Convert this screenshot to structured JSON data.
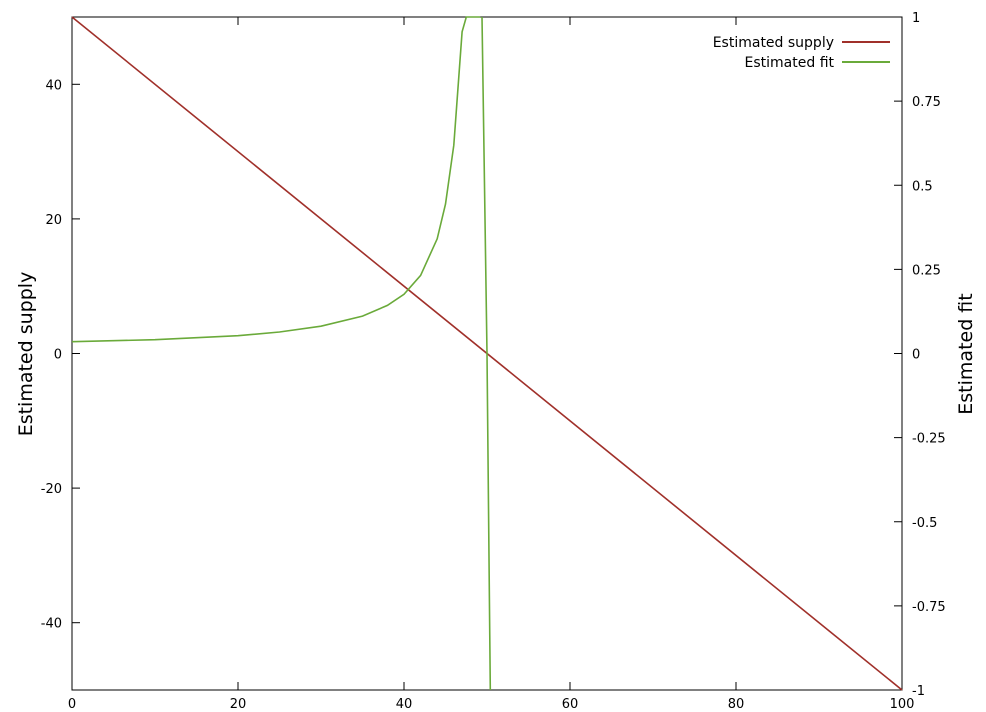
{
  "chart_data": {
    "type": "line",
    "title": "",
    "xlabel": "",
    "ylabel": "Estimated supply",
    "y2label": "Estimated fit",
    "xlim": [
      0,
      100
    ],
    "ylim": [
      -50,
      50
    ],
    "y2lim": [
      -1,
      1
    ],
    "grid": false,
    "legend_position": "top-right",
    "x_ticks": [
      "0",
      "20",
      "40",
      "60",
      "80",
      "100"
    ],
    "y_ticks": [
      "-40",
      "-20",
      "0",
      "20",
      "40"
    ],
    "y2_ticks": [
      "-1",
      "-0.75",
      "-0.5",
      "-0.25",
      "0",
      "0.25",
      "0.5",
      "0.75",
      "1"
    ],
    "series": [
      {
        "name": "Estimated supply",
        "axis": "left",
        "color": "#a0302a",
        "x": [
          0,
          100
        ],
        "y": [
          50,
          -50
        ]
      },
      {
        "name": "Estimated fit",
        "axis": "right",
        "color": "#6aaa3a",
        "segments": [
          {
            "x": [
              0,
              10,
              20,
              25,
              30,
              35,
              38,
              40,
              42,
              44,
              45,
              46,
              47,
              47.5,
              48,
              48.5,
              48.8,
              49.0,
              49.2
            ],
            "y": [
              0.035,
              0.041,
              0.053,
              0.064,
              0.081,
              0.111,
              0.143,
              0.176,
              0.232,
              0.341,
              0.444,
              0.619,
              0.956,
              1.0,
              1.0,
              1.0,
              1.0,
              1.0,
              1.0
            ]
          },
          {
            "x": [
              49.4,
              50.0,
              50.4
            ],
            "y": [
              1.0,
              0.0,
              -1.0
            ]
          }
        ]
      }
    ]
  }
}
